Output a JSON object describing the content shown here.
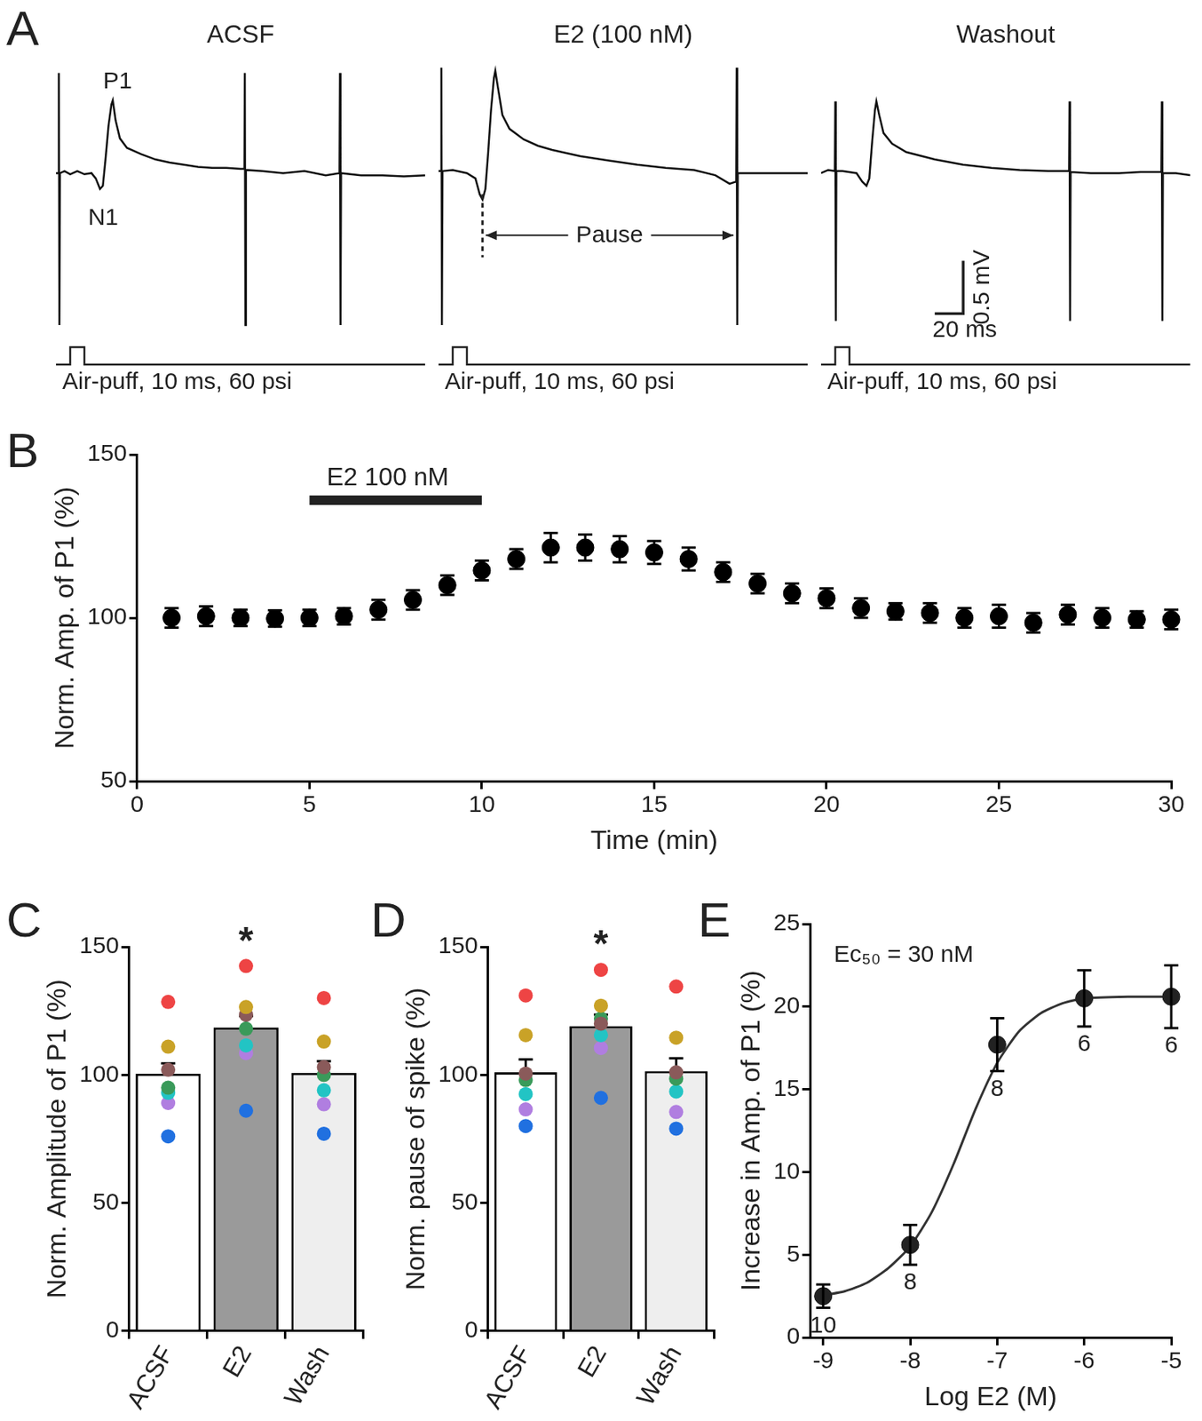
{
  "chart_data": [
    {
      "panel": "A",
      "type": "line",
      "title": "ACSF",
      "color": "#111111",
      "tick_labels": false,
      "grid": false,
      "xlim": [
        0,
        260
      ],
      "ylim": [
        -1.5,
        1.1
      ],
      "x": [
        0,
        1.7,
        2,
        2.4,
        2.8,
        6,
        10,
        15,
        20,
        25,
        28,
        31,
        33,
        35,
        37,
        39,
        40,
        42,
        45,
        50,
        60,
        70,
        80,
        90,
        100,
        110,
        120,
        130,
        132.7,
        133,
        133.4,
        133.8,
        145,
        160,
        175,
        190,
        199.7,
        200,
        200.4,
        200.8,
        215,
        230,
        245,
        260
      ],
      "values": [
        0,
        0,
        0.95,
        -1.44,
        0,
        0.02,
        -0.01,
        0.02,
        -0.01,
        0,
        -0.05,
        -0.15,
        -0.12,
        0.15,
        0.45,
        0.65,
        0.69,
        0.5,
        0.33,
        0.24,
        0.18,
        0.13,
        0.1,
        0.08,
        0.06,
        0.05,
        0.05,
        0.04,
        0.04,
        0.95,
        -1.44,
        0.03,
        0.02,
        0,
        0.02,
        -0.02,
        0,
        0.95,
        -1.44,
        0,
        -0.02,
        -0.02,
        -0.03,
        -0.02
      ],
      "annotations": [
        {
          "text": "P1",
          "x": 40,
          "y": 0.69
        },
        {
          "text": "N1",
          "x": 31,
          "y": -0.15
        }
      ],
      "stimulus": {
        "start": 10,
        "duration": 10,
        "label": "Air-puff, 10 ms, 60 psi"
      }
    },
    {
      "type": "line",
      "title": "E2 (100 nM)",
      "color": "#111111",
      "tick_labels": false,
      "grid": false,
      "xlim": [
        0,
        260
      ],
      "ylim": [
        -1.5,
        1.1
      ],
      "x": [
        0,
        1.7,
        2,
        2.4,
        2.8,
        10,
        20,
        26,
        29,
        31,
        33,
        35,
        37,
        39,
        40,
        42,
        45,
        50,
        60,
        70,
        80,
        100,
        120,
        140,
        160,
        180,
        195,
        205,
        209.7,
        210,
        210.4,
        210.8,
        220,
        240,
        260
      ],
      "values": [
        0.02,
        0.02,
        1.0,
        -1.44,
        0.02,
        0.03,
        0,
        -0.05,
        -0.2,
        -0.25,
        -0.15,
        0.2,
        0.6,
        0.9,
        0.97,
        0.8,
        0.55,
        0.42,
        0.32,
        0.26,
        0.22,
        0.16,
        0.12,
        0.08,
        0.05,
        0.03,
        -0.02,
        -0.1,
        -0.08,
        1.0,
        -1.44,
        0,
        0,
        0,
        0
      ],
      "pause": {
        "text": "Pause",
        "x_start": 31,
        "x_end": 210
      },
      "stimulus": {
        "start": 10,
        "duration": 10,
        "label": "Air-puff, 10 ms, 60 psi"
      }
    },
    {
      "type": "line",
      "title": "Washout",
      "color": "#111111",
      "tick_labels": false,
      "grid": false,
      "xlim": [
        0,
        260
      ],
      "ylim": [
        -1.5,
        1.1
      ],
      "x": [
        0,
        5,
        9.7,
        10,
        10.4,
        10.8,
        15,
        25,
        29,
        32,
        34,
        36,
        38,
        39,
        41,
        44,
        50,
        60,
        80,
        100,
        120,
        140,
        160,
        174.7,
        175,
        175.4,
        175.8,
        190,
        210,
        225,
        239.7,
        240,
        240.4,
        240.8,
        250,
        260
      ],
      "values": [
        0,
        0.03,
        0.02,
        0.68,
        -1.4,
        0.02,
        0.02,
        0,
        -0.08,
        -0.12,
        -0.05,
        0.3,
        0.6,
        0.68,
        0.55,
        0.38,
        0.28,
        0.2,
        0.13,
        0.08,
        0.05,
        0.03,
        0.02,
        0.02,
        0.68,
        -1.4,
        0.01,
        0,
        0,
        0.01,
        0.01,
        0.68,
        -1.4,
        0,
        0,
        -0.02
      ],
      "scale_bar": {
        "dx": 20,
        "dy": 0.5,
        "x_label": "20 ms",
        "y_label": "0.5 mV"
      },
      "stimulus": {
        "start": 10,
        "duration": 10,
        "label": "Air-puff, 10 ms, 60 psi"
      }
    },
    {
      "panel": "B",
      "type": "scatter",
      "color": "#000000",
      "grid": false,
      "xlabel": "Time (min)",
      "ylabel": "Norm. Amp. of P1 (%)",
      "xlim": [
        0,
        30
      ],
      "xticks": [
        0,
        5,
        10,
        15,
        20,
        25,
        30
      ],
      "ylim": [
        50,
        150
      ],
      "yticks": [
        50,
        100,
        150
      ],
      "x": [
        1,
        2,
        3,
        4,
        5,
        6,
        7,
        8,
        9,
        10,
        11,
        12,
        13,
        14,
        15,
        16,
        17,
        18,
        19,
        20,
        21,
        22,
        23,
        24,
        25,
        26,
        27,
        28,
        29,
        30
      ],
      "values": [
        100,
        100.5,
        100,
        99.8,
        100,
        100.5,
        102.5,
        105.5,
        110,
        114.5,
        118,
        121.5,
        121.5,
        121,
        120,
        118,
        114,
        110.5,
        107.5,
        106,
        103,
        102,
        101.5,
        100,
        100.5,
        98.5,
        101,
        100,
        99.5,
        99.5
      ],
      "errors": [
        3,
        3,
        2.5,
        2.5,
        2.5,
        2.5,
        3,
        3,
        3,
        3,
        3,
        4.5,
        4,
        4,
        3.5,
        3.5,
        3,
        3,
        3,
        3,
        3,
        2.5,
        3,
        3,
        3.5,
        3,
        3,
        3,
        2.5,
        3
      ],
      "annotations": [
        {
          "text": "E2 100 nM",
          "x_start": 5,
          "x_end": 10
        }
      ]
    },
    {
      "panel": "C",
      "type": "bar",
      "grid": false,
      "ylabel": "Norm. Amplitude of P1 (%)",
      "ylim": [
        0,
        150
      ],
      "yticks": [
        0,
        50,
        100,
        150
      ],
      "categories": [
        "ACSF",
        "E2",
        "Wash"
      ],
      "values": [
        100.5,
        118.5,
        100.8
      ],
      "errors": [
        4,
        4.5,
        4.5
      ],
      "colors": [
        "#ffffff",
        "#9a9a9a",
        "#eeeeee"
      ],
      "points": [
        {
          "color": "#ee4444",
          "values": [
            128.5,
            142.5,
            130
          ]
        },
        {
          "color": "#c9a227",
          "values": [
            111,
            126.5,
            113
          ]
        },
        {
          "color": "#8a5a5a",
          "values": [
            102,
            123.5,
            103
          ]
        },
        {
          "color": "#3a9a5a",
          "values": [
            95,
            118,
            100
          ]
        },
        {
          "color": "#22c4c4",
          "values": [
            93,
            111.5,
            94
          ]
        },
        {
          "color": "#b07ee0",
          "values": [
            89,
            108.5,
            88.5
          ]
        },
        {
          "color": "#2070e0",
          "values": [
            76,
            86,
            77
          ]
        }
      ],
      "annotations": [
        {
          "text": "*",
          "category": "E2"
        }
      ]
    },
    {
      "panel": "D",
      "type": "bar",
      "grid": false,
      "ylabel": "Norm. pause of spike (%)",
      "ylim": [
        0,
        150
      ],
      "yticks": [
        0,
        50,
        100,
        150
      ],
      "categories": [
        "ACSF",
        "E2",
        "Wash"
      ],
      "values": [
        101,
        119,
        101.5
      ],
      "errors": [
        5,
        4.5,
        5
      ],
      "colors": [
        "#ffffff",
        "#9a9a9a",
        "#eeeeee"
      ],
      "points": [
        {
          "color": "#ee4444",
          "values": [
            131,
            141,
            134.5
          ]
        },
        {
          "color": "#c9a227",
          "values": [
            115.5,
            127,
            114.5
          ]
        },
        {
          "color": "#8a5a5a",
          "values": [
            100.5,
            120,
            101
          ]
        },
        {
          "color": "#3a9a5a",
          "values": [
            98,
            122,
            98.5
          ]
        },
        {
          "color": "#22c4c4",
          "values": [
            92.5,
            115.5,
            93.5
          ]
        },
        {
          "color": "#b07ee0",
          "values": [
            86.5,
            110.5,
            85.5
          ]
        },
        {
          "color": "#2070e0",
          "values": [
            80,
            91,
            79
          ]
        }
      ],
      "annotations": [
        {
          "text": "*",
          "category": "E2"
        }
      ]
    },
    {
      "panel": "E",
      "type": "scatter",
      "color": "#222222",
      "grid": false,
      "xlabel": "Log E2 (M)",
      "ylabel": "Increase in Amp. of P1 (%)",
      "xlim": [
        -9.15,
        -5
      ],
      "xticks": [
        -9,
        -8,
        -7,
        -6,
        -5
      ],
      "ylim": [
        0,
        25
      ],
      "yticks": [
        0,
        5,
        10,
        15,
        20,
        25
      ],
      "x": [
        -9,
        -8,
        -7,
        -6,
        -5
      ],
      "values": [
        2.5,
        5.6,
        17.7,
        20.5,
        20.6
      ],
      "errors": [
        0.7,
        1.2,
        1.6,
        1.7,
        1.9
      ],
      "n": [
        10,
        8,
        8,
        6,
        6
      ],
      "fit": {
        "x": [
          -9.1,
          -8.75,
          -8.5,
          -8.25,
          -8,
          -7.75,
          -7.5,
          -7.25,
          -7,
          -6.75,
          -6.5,
          -6.25,
          -6,
          -5.5,
          -5
        ],
        "values": [
          2.45,
          2.8,
          3.3,
          4.2,
          5.5,
          7.6,
          10.5,
          13.8,
          16.6,
          18.5,
          19.6,
          20.2,
          20.5,
          20.6,
          20.6
        ]
      },
      "annotations": [
        {
          "text": "Ec₅₀ = 30 nM"
        }
      ]
    }
  ]
}
